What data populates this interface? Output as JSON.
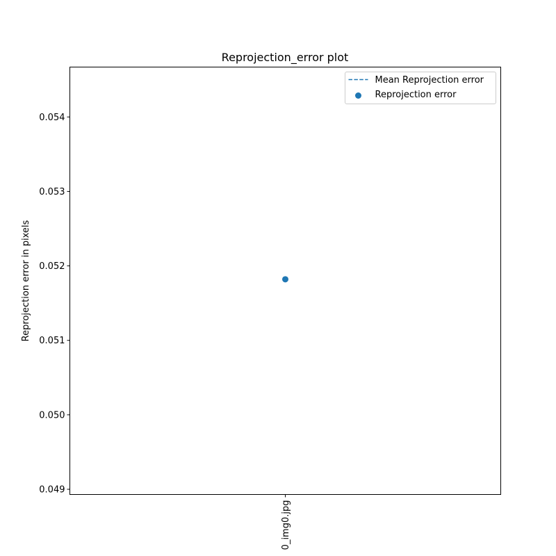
{
  "chart_data": {
    "type": "scatter",
    "title": "Reprojection_error plot",
    "xlabel": "",
    "ylabel": "Reprojection error in pixels",
    "categories": [
      "0_img0.jpg"
    ],
    "x_tick_rotation_deg": 90,
    "ylim": [
      0.04893,
      0.05467
    ],
    "yticks": [
      0.049,
      0.05,
      0.051,
      0.052,
      0.053,
      0.054
    ],
    "ytick_labels": [
      "0.049",
      "0.050",
      "0.051",
      "0.052",
      "0.053",
      "0.054"
    ],
    "grid": false,
    "legend_position": "top-right",
    "series": [
      {
        "name": "Mean Reprojection error",
        "kind": "line",
        "style": "dashed",
        "color": "#1f77b4",
        "values": [
          0.05182
        ]
      },
      {
        "name": "Reprojection error",
        "kind": "scatter",
        "marker": "circle",
        "color": "#1f77b4",
        "values": [
          0.05182
        ]
      }
    ]
  }
}
